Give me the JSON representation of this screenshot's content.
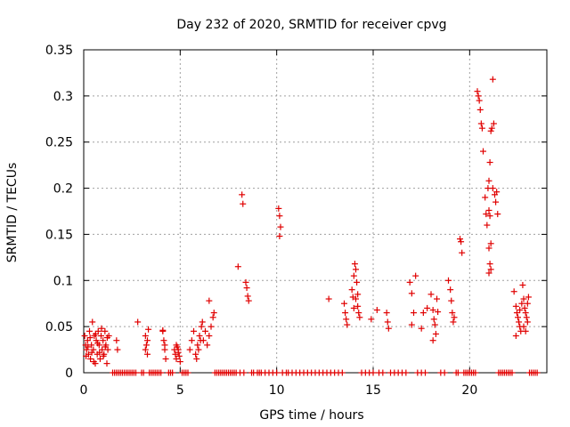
{
  "chart_data": {
    "type": "scatter",
    "title": "Day 232 of 2020, SRMTID for receiver cpvg",
    "xlabel": "GPS time / hours",
    "ylabel": "SRMTID / TECUs",
    "xlim": [
      0,
      24
    ],
    "ylim": [
      0,
      0.35
    ],
    "xticks": [
      0,
      5,
      10,
      15,
      20
    ],
    "xtick_labels": [
      "0",
      "5",
      "10",
      "15",
      "20"
    ],
    "yticks": [
      0,
      0.05,
      0.1,
      0.15,
      0.2,
      0.25,
      0.3,
      0.35
    ],
    "ytick_labels": [
      "0",
      "0.05",
      "0.1",
      "0.15",
      "0.2",
      "0.25",
      "0.3",
      "0.35"
    ],
    "grid": true,
    "marker": "+",
    "color": "#e00000",
    "series": [
      {
        "name": "SRMTID",
        "points": [
          [
            0.05,
            0.04
          ],
          [
            0.1,
            0.03
          ],
          [
            0.15,
            0.025
          ],
          [
            0.2,
            0.035
          ],
          [
            0.25,
            0.02
          ],
          [
            0.3,
            0.045
          ],
          [
            0.35,
            0.015
          ],
          [
            0.4,
            0.03
          ],
          [
            0.45,
            0.055
          ],
          [
            0.5,
            0.025
          ],
          [
            0.55,
            0.04
          ],
          [
            0.6,
            0.01
          ],
          [
            0.65,
            0.035
          ],
          [
            0.7,
            0.02
          ],
          [
            0.75,
            0.045
          ],
          [
            0.8,
            0.03
          ],
          [
            0.85,
            0.015
          ],
          [
            0.9,
            0.04
          ],
          [
            0.95,
            0.025
          ],
          [
            1.0,
            0.035
          ],
          [
            1.05,
            0.02
          ],
          [
            1.1,
            0.045
          ],
          [
            1.15,
            0.03
          ],
          [
            1.2,
            0.01
          ],
          [
            1.25,
            0.025
          ],
          [
            1.3,
            0.04
          ],
          [
            0.12,
            0.018
          ],
          [
            0.22,
            0.028
          ],
          [
            0.33,
            0.038
          ],
          [
            0.42,
            0.022
          ],
          [
            0.52,
            0.012
          ],
          [
            0.62,
            0.042
          ],
          [
            0.72,
            0.032
          ],
          [
            0.82,
            0.022
          ],
          [
            0.92,
            0.048
          ],
          [
            1.02,
            0.018
          ],
          [
            1.12,
            0.028
          ],
          [
            1.22,
            0.038
          ],
          [
            1.7,
            0.035
          ],
          [
            1.75,
            0.025
          ],
          [
            2.8,
            0.055
          ],
          [
            3.2,
            0.04
          ],
          [
            3.25,
            0.03
          ],
          [
            3.3,
            0.02
          ],
          [
            3.35,
            0.047
          ],
          [
            3.2,
            0.025
          ],
          [
            3.3,
            0.035
          ],
          [
            4.1,
            0.046
          ],
          [
            4.15,
            0.035
          ],
          [
            4.2,
            0.025
          ],
          [
            4.25,
            0.015
          ],
          [
            4.1,
            0.045
          ],
          [
            4.2,
            0.03
          ],
          [
            4.7,
            0.025
          ],
          [
            4.75,
            0.02
          ],
          [
            4.8,
            0.015
          ],
          [
            4.85,
            0.028
          ],
          [
            4.9,
            0.022
          ],
          [
            4.95,
            0.018
          ],
          [
            5.0,
            0.012
          ],
          [
            4.8,
            0.03
          ],
          [
            4.9,
            0.025
          ],
          [
            5.5,
            0.025
          ],
          [
            5.6,
            0.035
          ],
          [
            5.7,
            0.045
          ],
          [
            5.8,
            0.02
          ],
          [
            5.9,
            0.03
          ],
          [
            6.0,
            0.04
          ],
          [
            6.1,
            0.05
          ],
          [
            6.2,
            0.035
          ],
          [
            6.3,
            0.045
          ],
          [
            6.4,
            0.03
          ],
          [
            6.5,
            0.04
          ],
          [
            6.6,
            0.05
          ],
          [
            6.7,
            0.06
          ],
          [
            6.75,
            0.065
          ],
          [
            5.85,
            0.015
          ],
          [
            5.95,
            0.025
          ],
          [
            6.05,
            0.035
          ],
          [
            6.15,
            0.055
          ],
          [
            6.5,
            0.078
          ],
          [
            8.0,
            0.115
          ],
          [
            8.2,
            0.193
          ],
          [
            8.25,
            0.183
          ],
          [
            8.4,
            0.098
          ],
          [
            8.45,
            0.092
          ],
          [
            8.5,
            0.083
          ],
          [
            8.55,
            0.078
          ],
          [
            10.1,
            0.178
          ],
          [
            10.15,
            0.17
          ],
          [
            10.2,
            0.158
          ],
          [
            10.15,
            0.148
          ],
          [
            12.7,
            0.08
          ],
          [
            13.5,
            0.075
          ],
          [
            13.55,
            0.065
          ],
          [
            13.6,
            0.058
          ],
          [
            13.65,
            0.052
          ],
          [
            13.9,
            0.09
          ],
          [
            13.95,
            0.082
          ],
          [
            14.0,
            0.105
          ],
          [
            14.05,
            0.118
          ],
          [
            14.1,
            0.112
          ],
          [
            14.15,
            0.098
          ],
          [
            14.2,
            0.072
          ],
          [
            14.25,
            0.065
          ],
          [
            14.3,
            0.06
          ],
          [
            14.0,
            0.07
          ],
          [
            14.1,
            0.08
          ],
          [
            14.2,
            0.085
          ],
          [
            14.9,
            0.058
          ],
          [
            15.2,
            0.068
          ],
          [
            15.7,
            0.065
          ],
          [
            15.75,
            0.055
          ],
          [
            15.8,
            0.048
          ],
          [
            16.9,
            0.098
          ],
          [
            17.0,
            0.086
          ],
          [
            17.1,
            0.065
          ],
          [
            17.0,
            0.052
          ],
          [
            17.2,
            0.105
          ],
          [
            17.5,
            0.048
          ],
          [
            17.6,
            0.065
          ],
          [
            17.8,
            0.07
          ],
          [
            18.0,
            0.085
          ],
          [
            18.1,
            0.068
          ],
          [
            18.15,
            0.058
          ],
          [
            18.2,
            0.052
          ],
          [
            18.25,
            0.042
          ],
          [
            18.3,
            0.08
          ],
          [
            18.35,
            0.066
          ],
          [
            18.1,
            0.035
          ],
          [
            18.9,
            0.1
          ],
          [
            19.0,
            0.09
          ],
          [
            19.05,
            0.078
          ],
          [
            19.1,
            0.065
          ],
          [
            19.15,
            0.055
          ],
          [
            19.2,
            0.06
          ],
          [
            19.5,
            0.145
          ],
          [
            19.55,
            0.142
          ],
          [
            19.6,
            0.13
          ],
          [
            20.4,
            0.305
          ],
          [
            20.45,
            0.3
          ],
          [
            20.5,
            0.295
          ],
          [
            20.55,
            0.285
          ],
          [
            20.6,
            0.27
          ],
          [
            20.65,
            0.265
          ],
          [
            20.7,
            0.24
          ],
          [
            20.8,
            0.19
          ],
          [
            20.85,
            0.172
          ],
          [
            20.9,
            0.16
          ],
          [
            20.95,
            0.2
          ],
          [
            21.0,
            0.208
          ],
          [
            21.05,
            0.228
          ],
          [
            21.1,
            0.262
          ],
          [
            21.15,
            0.265
          ],
          [
            21.2,
            0.318
          ],
          [
            21.25,
            0.27
          ],
          [
            21.0,
            0.176
          ],
          [
            21.05,
            0.17
          ],
          [
            21.1,
            0.14
          ],
          [
            21.0,
            0.135
          ],
          [
            21.05,
            0.118
          ],
          [
            21.1,
            0.112
          ],
          [
            21.0,
            0.108
          ],
          [
            21.2,
            0.2
          ],
          [
            21.3,
            0.193
          ],
          [
            21.35,
            0.185
          ],
          [
            21.4,
            0.196
          ],
          [
            21.45,
            0.172
          ],
          [
            22.3,
            0.088
          ],
          [
            22.4,
            0.072
          ],
          [
            22.45,
            0.065
          ],
          [
            22.5,
            0.06
          ],
          [
            22.55,
            0.055
          ],
          [
            22.6,
            0.05
          ],
          [
            22.65,
            0.045
          ],
          [
            22.4,
            0.04
          ],
          [
            22.7,
            0.075
          ],
          [
            22.75,
            0.095
          ],
          [
            22.8,
            0.08
          ],
          [
            22.85,
            0.07
          ],
          [
            22.9,
            0.065
          ],
          [
            22.95,
            0.06
          ],
          [
            23.0,
            0.055
          ],
          [
            22.8,
            0.05
          ],
          [
            22.9,
            0.045
          ],
          [
            23.0,
            0.075
          ],
          [
            23.05,
            0.082
          ],
          [
            22.6,
            0.068
          ],
          [
            1.5,
            0
          ],
          [
            1.6,
            0
          ],
          [
            1.7,
            0
          ],
          [
            1.8,
            0
          ],
          [
            1.9,
            0
          ],
          [
            2.0,
            0
          ],
          [
            2.1,
            0
          ],
          [
            2.2,
            0
          ],
          [
            2.3,
            0
          ],
          [
            2.4,
            0
          ],
          [
            2.5,
            0
          ],
          [
            2.6,
            0
          ],
          [
            2.7,
            0
          ],
          [
            3.0,
            0
          ],
          [
            3.1,
            0
          ],
          [
            3.4,
            0
          ],
          [
            3.5,
            0
          ],
          [
            3.6,
            0
          ],
          [
            3.7,
            0
          ],
          [
            3.8,
            0
          ],
          [
            3.9,
            0
          ],
          [
            4.0,
            0
          ],
          [
            4.4,
            0
          ],
          [
            4.5,
            0
          ],
          [
            4.6,
            0
          ],
          [
            5.1,
            0
          ],
          [
            5.2,
            0
          ],
          [
            5.3,
            0
          ],
          [
            5.4,
            0
          ],
          [
            6.8,
            0
          ],
          [
            6.9,
            0
          ],
          [
            7.0,
            0
          ],
          [
            7.1,
            0
          ],
          [
            7.2,
            0
          ],
          [
            7.3,
            0
          ],
          [
            7.4,
            0
          ],
          [
            7.5,
            0
          ],
          [
            7.6,
            0
          ],
          [
            7.7,
            0
          ],
          [
            7.8,
            0
          ],
          [
            7.9,
            0
          ],
          [
            8.1,
            0
          ],
          [
            8.3,
            0
          ],
          [
            8.7,
            0
          ],
          [
            8.8,
            0
          ],
          [
            9.0,
            0
          ],
          [
            9.1,
            0
          ],
          [
            9.2,
            0
          ],
          [
            9.4,
            0
          ],
          [
            9.6,
            0
          ],
          [
            9.8,
            0
          ],
          [
            10.0,
            0
          ],
          [
            10.3,
            0
          ],
          [
            10.5,
            0
          ],
          [
            10.6,
            0
          ],
          [
            10.8,
            0
          ],
          [
            11.0,
            0
          ],
          [
            11.2,
            0
          ],
          [
            11.4,
            0
          ],
          [
            11.6,
            0
          ],
          [
            11.8,
            0
          ],
          [
            12.0,
            0
          ],
          [
            12.2,
            0
          ],
          [
            12.4,
            0
          ],
          [
            12.6,
            0
          ],
          [
            12.8,
            0
          ],
          [
            13.0,
            0
          ],
          [
            13.2,
            0
          ],
          [
            13.4,
            0
          ],
          [
            14.4,
            0
          ],
          [
            14.6,
            0
          ],
          [
            14.8,
            0
          ],
          [
            15.0,
            0
          ],
          [
            15.3,
            0
          ],
          [
            15.5,
            0
          ],
          [
            15.9,
            0
          ],
          [
            16.1,
            0
          ],
          [
            16.3,
            0
          ],
          [
            16.5,
            0
          ],
          [
            16.7,
            0
          ],
          [
            17.3,
            0
          ],
          [
            17.5,
            0
          ],
          [
            17.7,
            0
          ],
          [
            18.5,
            0
          ],
          [
            18.7,
            0
          ],
          [
            19.3,
            0
          ],
          [
            19.4,
            0
          ],
          [
            19.7,
            0
          ],
          [
            19.8,
            0
          ],
          [
            19.9,
            0
          ],
          [
            20.0,
            0
          ],
          [
            20.1,
            0
          ],
          [
            20.2,
            0
          ],
          [
            20.3,
            0
          ],
          [
            21.5,
            0
          ],
          [
            21.6,
            0
          ],
          [
            21.7,
            0
          ],
          [
            21.8,
            0
          ],
          [
            21.9,
            0
          ],
          [
            22.0,
            0
          ],
          [
            22.1,
            0
          ],
          [
            22.2,
            0
          ],
          [
            23.1,
            0
          ],
          [
            23.2,
            0
          ],
          [
            23.3,
            0
          ],
          [
            23.4,
            0
          ],
          [
            23.5,
            0
          ]
        ]
      }
    ]
  }
}
